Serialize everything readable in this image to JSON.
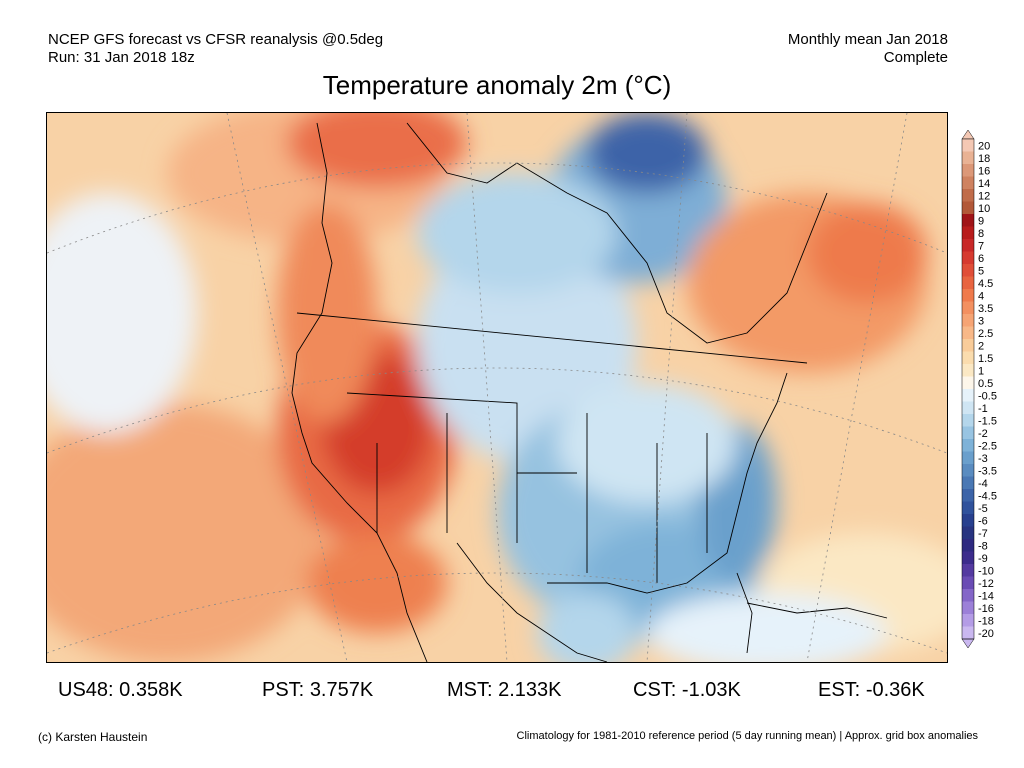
{
  "header": {
    "left_line1": "NCEP GFS forecast vs CFSR reanalysis @0.5deg",
    "left_line2": "Run: 31 Jan 2018 18z",
    "right_line1": "Monthly mean Jan 2018",
    "right_line2": "Complete"
  },
  "title": "Temperature anomaly 2m (°C)",
  "legend": {
    "labels": [
      "20",
      "18",
      "16",
      "14",
      "12",
      "10",
      "9",
      "8",
      "7",
      "6",
      "5",
      "4.5",
      "4",
      "3.5",
      "3",
      "2.5",
      "2",
      "1.5",
      "1",
      "0.5",
      "-0.5",
      "-1",
      "-1.5",
      "-2",
      "-2.5",
      "-3",
      "-3.5",
      "-4",
      "-4.5",
      "-5",
      "-6",
      "-7",
      "-8",
      "-9",
      "-10",
      "-12",
      "-14",
      "-16",
      "-18",
      "-20"
    ],
    "colors": [
      "#f4c8b4",
      "#e9b294",
      "#dc9878",
      "#cf8260",
      "#c06c4a",
      "#b25838",
      "#a01418",
      "#b81c1c",
      "#c82828",
      "#d63a30",
      "#e04e38",
      "#e86440",
      "#ef7a4c",
      "#f39060",
      "#f6a474",
      "#f8b888",
      "#f9cc9a",
      "#fadcae",
      "#fbe8c4",
      "#fdf6ea",
      "#e6f2fa",
      "#cfe5f3",
      "#b4d6eb",
      "#98c4e2",
      "#7eb2d8",
      "#6a9fcc",
      "#5a8cc0",
      "#4a78b4",
      "#3c64a8",
      "#30529c",
      "#28408e",
      "#283480",
      "#2e2a80",
      "#3c2c8c",
      "#543aa0",
      "#6a4cb4",
      "#8466c8",
      "#9c80d8",
      "#b49ce6",
      "#cab8f0"
    ]
  },
  "stats": [
    {
      "label": "US48:",
      "value": "0.358K"
    },
    {
      "label": "PST:",
      "value": "3.757K"
    },
    {
      "label": "MST:",
      "value": "2.133K"
    },
    {
      "label": "CST:",
      "value": "-1.03K"
    },
    {
      "label": "EST:",
      "value": "-0.36K"
    }
  ],
  "footer": {
    "left": "(c) Karsten Haustein",
    "right": "Climatology for 1981-2010 reference period (5 day running mean) | Approx. grid box anomalies"
  }
}
